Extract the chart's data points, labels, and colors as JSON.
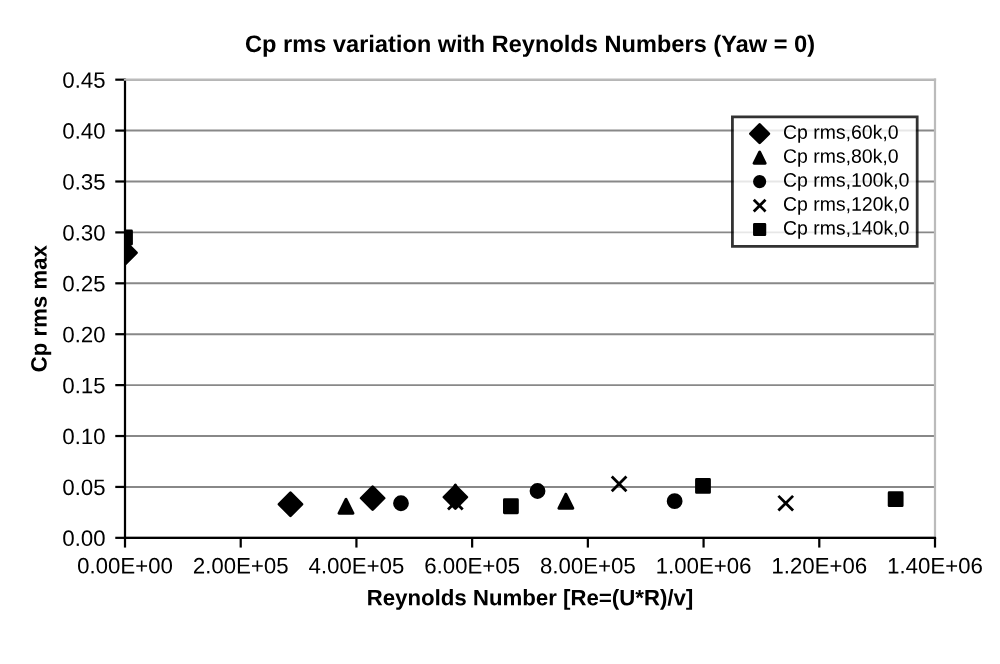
{
  "chart_data": {
    "type": "scatter",
    "title": "Cp rms variation with Reynolds Numbers (Yaw = 0)",
    "xlabel": "Reynolds Number [Re=(U*R)/v]",
    "ylabel": "Cp rms max",
    "series": [
      {
        "name": "Cp rms,60k,0",
        "color": "#000000",
        "marker": "diamond",
        "x": [
          0,
          286000,
          428000,
          571000
        ],
        "values": [
          0.28,
          0.033,
          0.039,
          0.04
        ]
      },
      {
        "name": "Cp rms,80k,0",
        "color": "#000000",
        "marker": "triangle",
        "x": [
          382000,
          571000,
          762000
        ],
        "values": [
          0.031,
          0.045,
          0.036
        ]
      },
      {
        "name": "Cp rms,100k,0",
        "color": "#000000",
        "marker": "circle",
        "x": [
          477000,
          713000,
          950000
        ],
        "values": [
          0.034,
          0.046,
          0.036
        ]
      },
      {
        "name": "Cp rms,120k,0",
        "color": "#000000",
        "marker": "cross",
        "x": [
          571000,
          854000,
          1142000
        ],
        "values": [
          0.035,
          0.053,
          0.034
        ]
      },
      {
        "name": "Cp rms,140k,0",
        "color": "#000000",
        "marker": "square",
        "x": [
          0,
          667000,
          999000,
          1332000
        ],
        "values": [
          0.295,
          0.031,
          0.051,
          0.038
        ]
      }
    ],
    "xlim": [
      0,
      1400000
    ],
    "xticks": [
      {
        "value": 0,
        "label": "0.00E+00"
      },
      {
        "value": 200000,
        "label": "2.00E+05"
      },
      {
        "value": 400000,
        "label": "4.00E+05"
      },
      {
        "value": 600000,
        "label": "6.00E+05"
      },
      {
        "value": 800000,
        "label": "8.00E+05"
      },
      {
        "value": 1000000,
        "label": "1.00E+06"
      },
      {
        "value": 1200000,
        "label": "1.20E+06"
      },
      {
        "value": 1400000,
        "label": "1.40E+06"
      }
    ],
    "ylim": [
      0,
      0.45
    ],
    "yticks": [
      {
        "value": 0,
        "label": "0.00"
      },
      {
        "value": 0.05,
        "label": "0.05"
      },
      {
        "value": 0.1,
        "label": "0.10"
      },
      {
        "value": 0.15,
        "label": "0.15"
      },
      {
        "value": 0.2,
        "label": "0.20"
      },
      {
        "value": 0.25,
        "label": "0.25"
      },
      {
        "value": 0.3,
        "label": "0.30"
      },
      {
        "value": 0.35,
        "label": "0.35"
      },
      {
        "value": 0.4,
        "label": "0.40"
      },
      {
        "value": 0.45,
        "label": "0.45"
      }
    ],
    "grid": "y",
    "legend": "top right"
  }
}
